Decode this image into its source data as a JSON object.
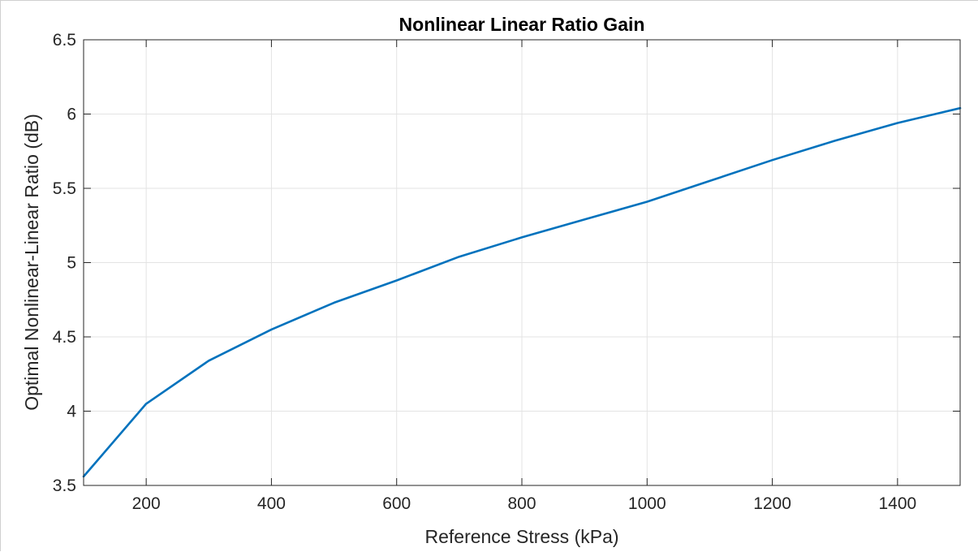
{
  "chart_data": {
    "type": "line",
    "title": "Nonlinear Linear Ratio Gain",
    "xlabel": "Reference Stress (kPa)",
    "ylabel": "Optimal Nonlinear-Linear Ratio (dB)",
    "xlim": [
      100,
      1500
    ],
    "ylim": [
      3.5,
      6.5
    ],
    "xticks": [
      200,
      400,
      600,
      800,
      1000,
      1200,
      1400
    ],
    "yticks": [
      3.5,
      4,
      4.5,
      5,
      5.5,
      6,
      6.5
    ],
    "xtick_labels": [
      "200",
      "400",
      "600",
      "800",
      "1000",
      "1200",
      "1400"
    ],
    "ytick_labels": [
      "3.5",
      "4",
      "4.5",
      "5",
      "5.5",
      "6",
      "6.5"
    ],
    "grid": true,
    "series": [
      {
        "x": [
          100,
          200,
          300,
          400,
          500,
          600,
          700,
          800,
          900,
          1000,
          1100,
          1200,
          1300,
          1400,
          1500
        ],
        "y": [
          3.56,
          4.05,
          4.34,
          4.55,
          4.73,
          4.88,
          5.04,
          5.17,
          5.29,
          5.41,
          5.55,
          5.69,
          5.82,
          5.94,
          6.04
        ],
        "color": "#0072BD"
      }
    ]
  }
}
